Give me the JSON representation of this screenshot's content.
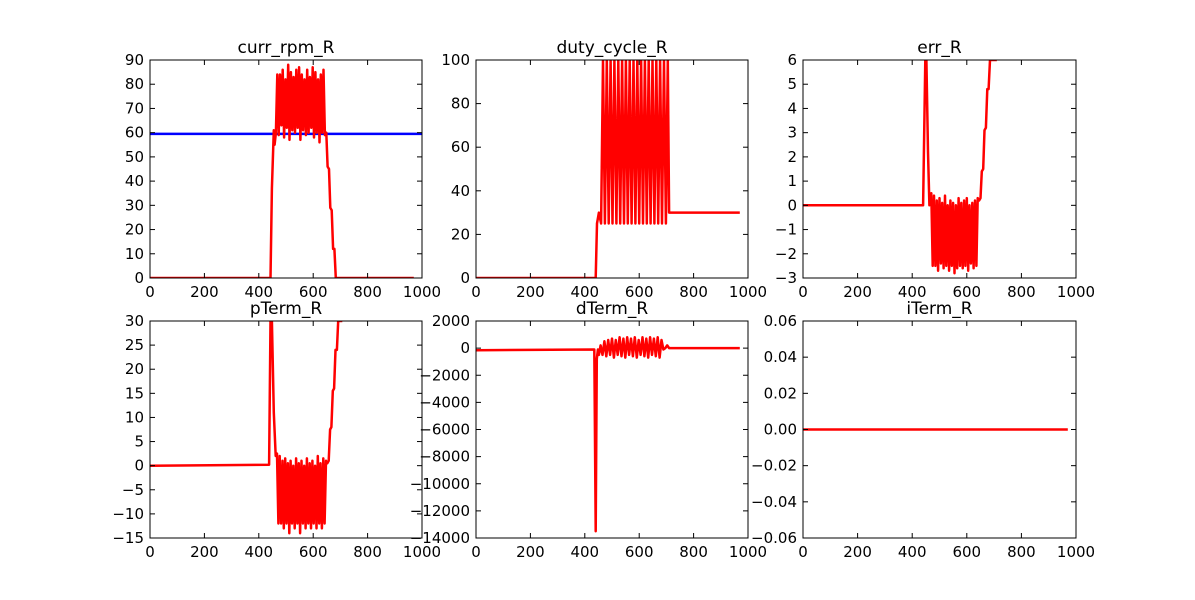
{
  "chart_data": [
    {
      "type": "line",
      "title": "curr_rpm_R",
      "xlim": [
        0,
        1000
      ],
      "ylim": [
        0,
        90
      ],
      "xticks": [
        0,
        200,
        400,
        600,
        800,
        1000
      ],
      "yticks": [
        0,
        10,
        20,
        30,
        40,
        50,
        60,
        70,
        80,
        90
      ],
      "series": [
        {
          "color": "#0000ff",
          "x": [
            0,
            1000
          ],
          "y": [
            59.5,
            59.5
          ]
        },
        {
          "color": "#ff0000",
          "x": [
            0,
            443,
            448,
            455,
            458,
            463,
            468,
            473,
            478,
            483,
            488,
            493,
            498,
            503,
            508,
            513,
            518,
            523,
            528,
            533,
            538,
            543,
            548,
            553,
            558,
            563,
            568,
            573,
            578,
            583,
            588,
            593,
            598,
            603,
            608,
            613,
            618,
            623,
            628,
            633,
            638,
            643,
            648,
            653,
            658,
            663,
            668,
            673,
            678,
            683,
            688,
            693,
            698,
            703,
            708,
            970
          ],
          "y": [
            0,
            0,
            37,
            61,
            55,
            60,
            84,
            59,
            84,
            63,
            86,
            58,
            82,
            62,
            88,
            57,
            85,
            61,
            83,
            60,
            86,
            62,
            87,
            57,
            84,
            61,
            82,
            59,
            86,
            60,
            83,
            62,
            87,
            58,
            85,
            60,
            82,
            56,
            84,
            60,
            86,
            59,
            60,
            46,
            45,
            29,
            28,
            12,
            12,
            0,
            0,
            0,
            0,
            0,
            0,
            0
          ]
        }
      ]
    },
    {
      "type": "line",
      "title": "duty_cycle_R",
      "xlim": [
        0,
        1000
      ],
      "ylim": [
        0,
        100
      ],
      "xticks": [
        0,
        200,
        400,
        600,
        800,
        1000
      ],
      "yticks": [
        0,
        20,
        40,
        60,
        80,
        100
      ],
      "series": [
        {
          "color": "#ff0000",
          "x": [
            0,
            440,
            445,
            452,
            460,
            467,
            474,
            481,
            488,
            495,
            502,
            509,
            516,
            523,
            530,
            537,
            544,
            551,
            558,
            565,
            572,
            579,
            586,
            593,
            600,
            607,
            614,
            621,
            628,
            635,
            642,
            649,
            656,
            663,
            670,
            677,
            684,
            691,
            698,
            705,
            710,
            970
          ],
          "y": [
            0,
            0,
            25,
            30,
            25,
            100,
            25,
            100,
            25,
            100,
            25,
            100,
            25,
            100,
            25,
            100,
            25,
            100,
            25,
            100,
            25,
            100,
            25,
            100,
            25,
            100,
            25,
            100,
            25,
            100,
            25,
            100,
            25,
            100,
            25,
            100,
            25,
            100,
            25,
            100,
            30,
            30
          ]
        }
      ]
    },
    {
      "type": "line",
      "title": "err_R",
      "xlim": [
        0,
        1000
      ],
      "ylim": [
        -3,
        6
      ],
      "xticks": [
        0,
        200,
        400,
        600,
        800,
        1000
      ],
      "yticks": [
        -3,
        -2,
        -1,
        0,
        1,
        2,
        3,
        4,
        5,
        6
      ],
      "series": [
        {
          "color": "#ff0000",
          "x": [
            0,
            440,
            448,
            452,
            458,
            463,
            470,
            475,
            480,
            485,
            490,
            495,
            500,
            505,
            510,
            515,
            520,
            525,
            530,
            535,
            540,
            545,
            550,
            555,
            560,
            565,
            570,
            575,
            580,
            585,
            590,
            595,
            600,
            605,
            610,
            615,
            620,
            625,
            630,
            635,
            640,
            645,
            650,
            655,
            660,
            665,
            670,
            675,
            680,
            685,
            690,
            695,
            700,
            705,
            710
          ],
          "y": [
            0,
            0,
            6,
            6,
            2.2,
            0,
            0.5,
            -2.5,
            0.4,
            -2.5,
            0.2,
            -2.7,
            0.3,
            -2.4,
            0.1,
            -2.6,
            0.4,
            -2.5,
            0,
            -2.7,
            0.2,
            -2.5,
            0.1,
            -2.8,
            0,
            -2.6,
            0.3,
            -2.5,
            0.1,
            -2.6,
            0.2,
            -2.5,
            0.3,
            -2.7,
            0,
            -2.4,
            0.1,
            -2.6,
            0.2,
            -2.5,
            0.3,
            0.2,
            0.3,
            1.4,
            1.5,
            3.1,
            3.2,
            4.8,
            4.8,
            6,
            6,
            6,
            6,
            6,
            6
          ]
        }
      ]
    },
    {
      "type": "line",
      "title": "pTerm_R",
      "xlim": [
        0,
        1000
      ],
      "ylim": [
        -15,
        30
      ],
      "xticks": [
        0,
        200,
        400,
        600,
        800,
        1000
      ],
      "yticks": [
        -15,
        -10,
        -5,
        0,
        5,
        10,
        15,
        20,
        25,
        30
      ],
      "series": [
        {
          "color": "#ff0000",
          "x": [
            0,
            438,
            443,
            448,
            455,
            462,
            467,
            472,
            477,
            482,
            487,
            492,
            497,
            502,
            507,
            512,
            517,
            522,
            527,
            532,
            537,
            542,
            547,
            552,
            557,
            562,
            567,
            572,
            577,
            582,
            587,
            592,
            597,
            602,
            607,
            612,
            617,
            622,
            627,
            632,
            637,
            642,
            647,
            652,
            657,
            662,
            667,
            672,
            677,
            682,
            687,
            692,
            697,
            702,
            707
          ],
          "y": [
            0,
            0.2,
            30,
            30,
            11,
            2,
            2.5,
            -12,
            2,
            -12,
            1,
            -13,
            1.5,
            -12,
            0.5,
            -14,
            1,
            -12,
            0,
            -13,
            1.5,
            -12,
            0.5,
            -14,
            1,
            -12,
            0,
            -13,
            1.5,
            -12,
            0.5,
            -13,
            1,
            -12,
            0,
            -13,
            2,
            -12,
            0.5,
            -13,
            1.5,
            -12,
            1,
            0.5,
            1,
            7.5,
            8,
            15.5,
            16,
            24,
            24,
            30,
            30,
            30,
            30
          ]
        }
      ]
    },
    {
      "type": "line",
      "title": "dTerm_R",
      "xlim": [
        0,
        1000
      ],
      "ylim": [
        -14000,
        2000
      ],
      "xticks": [
        0,
        200,
        400,
        600,
        800,
        1000
      ],
      "yticks": [
        -14000,
        -12000,
        -10000,
        -8000,
        -6000,
        -4000,
        -2000,
        0,
        2000
      ],
      "series": [
        {
          "color": "#ff0000",
          "x": [
            0,
            435,
            440,
            444,
            448,
            452,
            458,
            465,
            472,
            479,
            486,
            493,
            500,
            507,
            514,
            521,
            528,
            535,
            542,
            549,
            556,
            563,
            570,
            577,
            584,
            591,
            598,
            605,
            612,
            619,
            626,
            633,
            640,
            647,
            654,
            661,
            668,
            675,
            682,
            689,
            696,
            703,
            710,
            970
          ],
          "y": [
            -150,
            -100,
            -13500,
            -800,
            -100,
            -500,
            200,
            -500,
            500,
            -600,
            600,
            -500,
            700,
            -700,
            600,
            -500,
            800,
            -600,
            700,
            -700,
            800,
            -500,
            700,
            -600,
            800,
            -700,
            600,
            -500,
            800,
            -600,
            700,
            -700,
            800,
            -500,
            700,
            -600,
            800,
            -700,
            600,
            -100,
            0,
            200,
            0,
            0
          ]
        }
      ]
    },
    {
      "type": "line",
      "title": "iTerm_R",
      "xlim": [
        0,
        1000
      ],
      "ylim": [
        -0.06,
        0.06
      ],
      "xticks": [
        0,
        200,
        400,
        600,
        800,
        1000
      ],
      "yticks": [
        -0.06,
        -0.04,
        -0.02,
        0.0,
        0.02,
        0.04,
        0.06
      ],
      "yticklabels": [
        "−0.06",
        "−0.04",
        "−0.02",
        "0.00",
        "0.02",
        "0.04",
        "0.06"
      ],
      "series": [
        {
          "color": "#ff0000",
          "x": [
            0,
            970
          ],
          "y": [
            0,
            0
          ]
        }
      ]
    }
  ]
}
